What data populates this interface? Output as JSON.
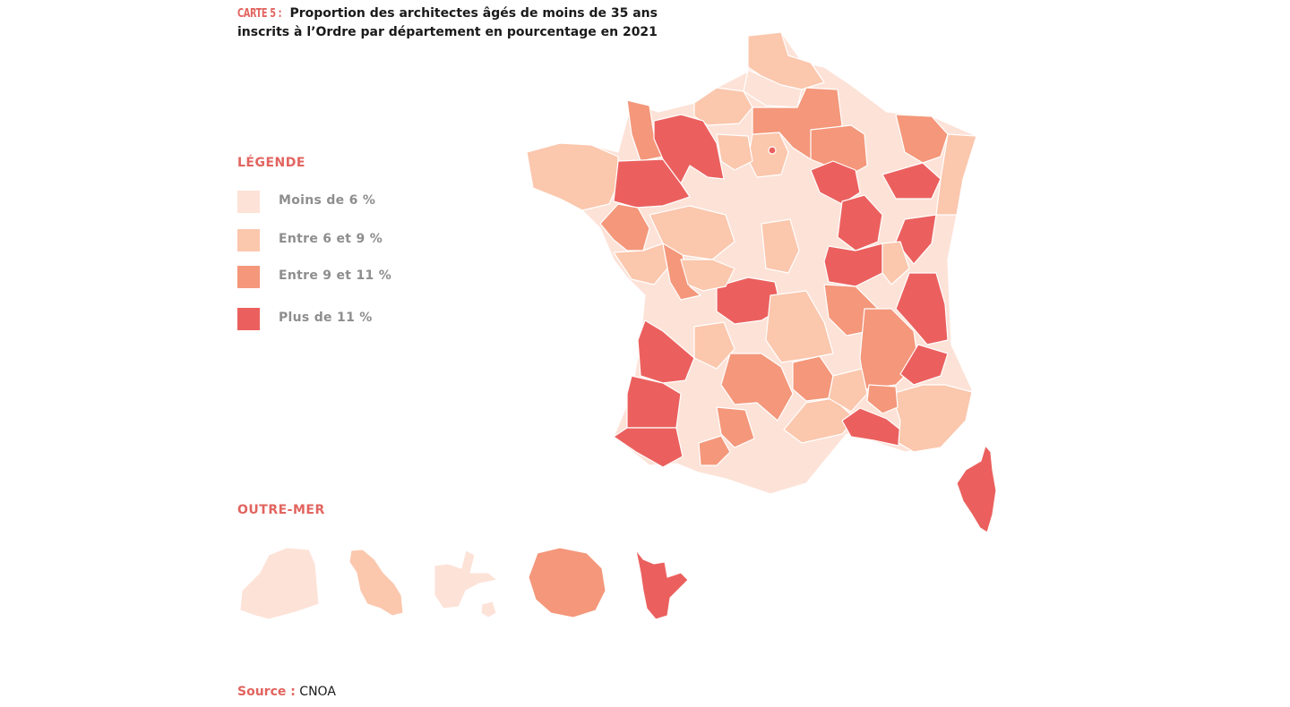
{
  "header": {
    "tag": "CARTE 5 :",
    "title_line1": "Proportion des architectes âgés de moins de 35 ans",
    "title_line2": "inscrits à l’Ordre par département en pourcentage en 2021"
  },
  "legend": {
    "title": "LÉGENDE",
    "items": [
      {
        "label": "Moins de 6 %",
        "color": "#fde2d7"
      },
      {
        "label": "Entre 6 et 9 %",
        "color": "#fbc7ad"
      },
      {
        "label": "Entre 9 et 11 %",
        "color": "#f4977a"
      },
      {
        "label": "Plus de 11 %",
        "color": "#eb605e"
      }
    ]
  },
  "overseas": {
    "title": "OUTRE-MER",
    "territories": [
      {
        "name": "Guyane",
        "class": "Moins de 6 %"
      },
      {
        "name": "Martinique",
        "class": "Entre 6 et 9 %"
      },
      {
        "name": "Guadeloupe",
        "class": "Moins de 6 %"
      },
      {
        "name": "La Réunion",
        "class": "Entre 9 et 11 %"
      },
      {
        "name": "Mayotte",
        "class": "Plus de 11 %"
      }
    ]
  },
  "source": {
    "label": "Source :",
    "value": "CNOA"
  }
}
